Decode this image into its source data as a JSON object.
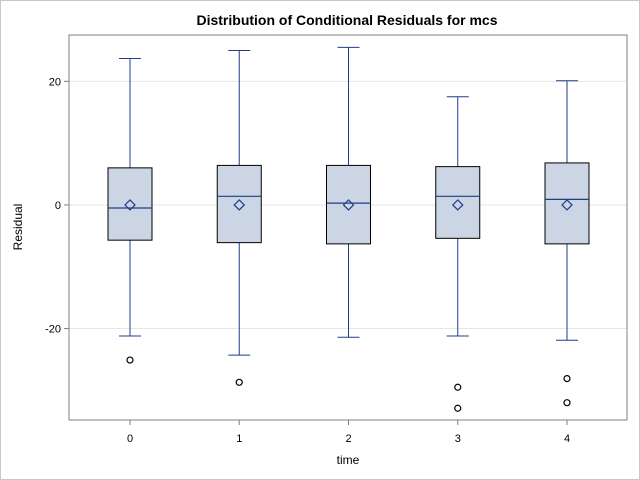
{
  "chart_data": {
    "type": "box",
    "title": "Distribution of Conditional Residuals for mcs",
    "xlabel": "time",
    "ylabel": "Residual",
    "ylim": [
      -34.8,
      27.5
    ],
    "yticks": [
      -20,
      0,
      20
    ],
    "grid": true,
    "colors": {
      "box_fill": "#cbd5e4",
      "box_stroke": "#000000",
      "whisker": "#1f3d8a",
      "median": "#1f3d8a",
      "mean_marker": "#1f3d8a",
      "outlier": "#000000",
      "grid": "#e6e6e6",
      "axis": "#808080"
    },
    "categories": [
      "0",
      "1",
      "2",
      "3",
      "4"
    ],
    "boxes": [
      {
        "category": "0",
        "min": -21.2,
        "q1": -5.7,
        "median": -0.5,
        "q3": 6.0,
        "max": 23.7,
        "mean": 0.0,
        "outliers": [
          -25.1
        ]
      },
      {
        "category": "1",
        "min": -24.3,
        "q1": -6.1,
        "median": 1.4,
        "q3": 6.4,
        "max": 25.0,
        "mean": 0.0,
        "outliers": [
          -28.7
        ]
      },
      {
        "category": "2",
        "min": -21.4,
        "q1": -6.3,
        "median": 0.3,
        "q3": 6.4,
        "max": 25.5,
        "mean": 0.0,
        "outliers": []
      },
      {
        "category": "3",
        "min": -21.2,
        "q1": -5.4,
        "median": 1.4,
        "q3": 6.2,
        "max": 17.5,
        "mean": 0.0,
        "outliers": [
          -29.5,
          -32.9
        ]
      },
      {
        "category": "4",
        "min": -21.9,
        "q1": -6.3,
        "median": 0.9,
        "q3": 6.8,
        "max": 20.1,
        "mean": 0.0,
        "outliers": [
          -28.1,
          -32.0
        ]
      }
    ]
  }
}
